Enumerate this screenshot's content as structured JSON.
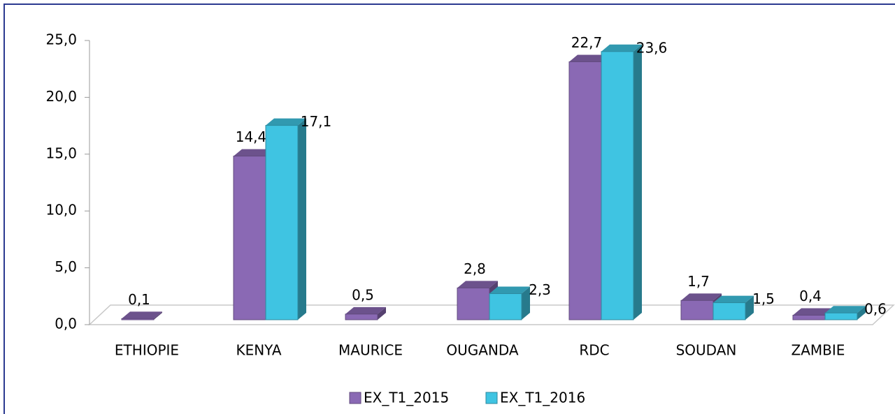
{
  "chart_data": {
    "type": "bar3d",
    "categories": [
      "ETHIOPIE",
      "KENYA",
      "MAURICE",
      "OUGANDA",
      "RDC",
      "SOUDAN",
      "ZAMBIE"
    ],
    "series": [
      {
        "name": "EX_T1_2015",
        "color": "#8a69b4",
        "values": [
          0.1,
          14.4,
          0.5,
          2.8,
          22.7,
          1.7,
          0.4
        ],
        "value_labels": [
          "0,1",
          "14,4",
          "0,5",
          "2,8",
          "22,7",
          "1,7",
          "0,4"
        ]
      },
      {
        "name": "EX_T1_2016",
        "color": "#3fc4e2",
        "values": [
          null,
          17.1,
          null,
          2.3,
          23.6,
          1.5,
          0.6
        ],
        "value_labels": [
          null,
          "17,1",
          null,
          "2,3",
          "23,6",
          "1,5",
          "0,6"
        ]
      }
    ],
    "ylim": [
      0,
      25
    ],
    "yticks": [
      {
        "value": 0,
        "label": "0,0"
      },
      {
        "value": 5,
        "label": "5,0"
      },
      {
        "value": 10,
        "label": "10,0"
      },
      {
        "value": 15,
        "label": "15,0"
      },
      {
        "value": 20,
        "label": "20,0"
      },
      {
        "value": 25,
        "label": "25,0"
      }
    ],
    "legend": "bottom"
  }
}
